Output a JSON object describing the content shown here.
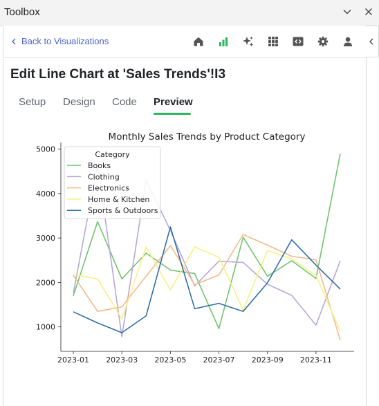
{
  "window": {
    "title": "Toolbox",
    "collapse_icon": "chevron-down-icon",
    "close_icon": "close-icon"
  },
  "nav": {
    "back_label": "Back to Visualizations",
    "icons": [
      "home-icon",
      "bar-chart-icon",
      "sparkles-icon",
      "grid-icon",
      "code-icon",
      "gear-icon",
      "user-icon"
    ],
    "active_icon_color": "#2db55d",
    "link_color": "#4b63c9"
  },
  "editor": {
    "heading": "Edit Line Chart at 'Sales Trends'!I3",
    "tabs": [
      {
        "label": "Setup"
      },
      {
        "label": "Design"
      },
      {
        "label": "Code"
      },
      {
        "label": "Preview"
      }
    ],
    "active_tab": "Preview"
  },
  "chart_data": {
    "type": "line",
    "title": "Monthly Sales Trends by Product Category",
    "xlabel": "",
    "ylabel": "",
    "x": [
      "2023-01",
      "2023-02",
      "2023-03",
      "2023-04",
      "2023-05",
      "2023-06",
      "2023-07",
      "2023-08",
      "2023-09",
      "2023-10",
      "2023-11",
      "2023-12"
    ],
    "x_tick_labels": [
      "2023-01",
      "2023-03",
      "2023-05",
      "2023-07",
      "2023-09",
      "2023-11"
    ],
    "y_ticks": [
      1000,
      2000,
      3000,
      4000,
      5000
    ],
    "ylim": [
      450,
      5150
    ],
    "grid": false,
    "legend": {
      "title": "Category",
      "placement": "top-left"
    },
    "series": [
      {
        "name": "Books",
        "color": "#6fc46f",
        "values": [
          1700,
          3370,
          2080,
          2660,
          2280,
          2200,
          960,
          3020,
          2140,
          2490,
          2090,
          4900
        ]
      },
      {
        "name": "Clothing",
        "color": "#b9a6d6",
        "values": [
          1760,
          4650,
          780,
          4300,
          3170,
          1920,
          2480,
          2450,
          1960,
          1710,
          1040,
          2490
        ]
      },
      {
        "name": "Electronics",
        "color": "#f4b98a",
        "values": [
          2160,
          1350,
          1450,
          2140,
          2830,
          1950,
          2170,
          3080,
          2840,
          2590,
          2510,
          700
        ]
      },
      {
        "name": "Home & Kitchen",
        "color": "#f7f085",
        "values": [
          2180,
          2080,
          1180,
          2800,
          1830,
          2800,
          2570,
          1380,
          2720,
          2530,
          2160,
          900
        ]
      },
      {
        "name": "Sports & Outdoors",
        "color": "#2f6ea8",
        "values": [
          1340,
          1090,
          870,
          1250,
          3250,
          1410,
          1530,
          1350,
          1990,
          2960,
          2390,
          1850
        ]
      }
    ]
  }
}
